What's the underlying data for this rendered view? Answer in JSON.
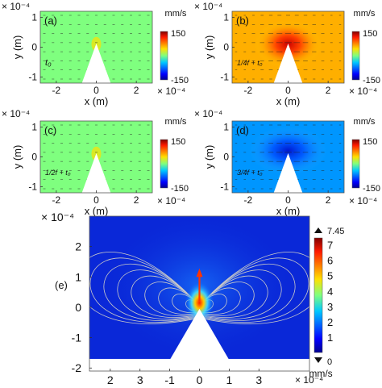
{
  "chart_data": [
    {
      "type": "heatmap",
      "panel_label": "(a)",
      "time_label": "t₀",
      "field": "uniform",
      "xlabel": "x (m)",
      "ylabel": "y (m)",
      "x_exponent": "× 10⁻⁴",
      "y_exponent": "× 10⁻⁴",
      "xlim": [
        -2.8,
        2.8
      ],
      "ylim": [
        -1.2,
        1.2
      ],
      "xticks": [
        "-2",
        "0",
        "2"
      ],
      "yticks": [
        "1",
        "0",
        "-1"
      ],
      "colorbar": {
        "unit": "mm/s",
        "ticks": [
          "150",
          "-150"
        ],
        "range": [
          -150,
          150
        ]
      },
      "background_value": 0
    },
    {
      "type": "heatmap",
      "panel_label": "(b)",
      "time_label": "1/4f + t₀",
      "field": "positive",
      "xlabel": "x (m)",
      "ylabel": "y (m)",
      "x_exponent": "× 10⁻⁴",
      "y_exponent": "× 10⁻⁴",
      "xlim": [
        -2.8,
        2.8
      ],
      "ylim": [
        -1.2,
        1.2
      ],
      "xticks": [
        "-2",
        "0",
        "2"
      ],
      "yticks": [
        "1",
        "0",
        "-1"
      ],
      "colorbar": {
        "unit": "mm/s",
        "ticks": [
          "150",
          "-150"
        ],
        "range": [
          -150,
          150
        ]
      },
      "background_value": 60
    },
    {
      "type": "heatmap",
      "panel_label": "(c)",
      "time_label": "1/2f + t₀",
      "field": "uniform",
      "xlabel": "x (m)",
      "ylabel": "y (m)",
      "x_exponent": "× 10⁻⁴",
      "y_exponent": "× 10⁻⁴",
      "xlim": [
        -2.8,
        2.8
      ],
      "ylim": [
        -1.2,
        1.2
      ],
      "xticks": [
        "-2",
        "0",
        "2"
      ],
      "yticks": [
        "1",
        "0",
        "-1"
      ],
      "colorbar": {
        "unit": "mm/s",
        "ticks": [
          "150",
          "-150"
        ],
        "range": [
          -150,
          150
        ]
      },
      "background_value": 0
    },
    {
      "type": "heatmap",
      "panel_label": "(d)",
      "time_label": "3/4f + t₀",
      "field": "negative",
      "xlabel": "x (m)",
      "ylabel": "y (m)",
      "x_exponent": "× 10⁻⁴",
      "y_exponent": "× 10⁻⁴",
      "xlim": [
        -2.8,
        2.8
      ],
      "ylim": [
        -1.2,
        1.2
      ],
      "xticks": [
        "-2",
        "0",
        "2"
      ],
      "yticks": [
        "1",
        "0",
        "-1"
      ],
      "colorbar": {
        "unit": "mm/s",
        "ticks": [
          "150",
          "-150"
        ],
        "range": [
          -150,
          150
        ]
      },
      "background_value": -60
    },
    {
      "type": "heatmap",
      "panel_label": "(e)",
      "field": "streaming",
      "x_exponent": "× 10⁻⁴",
      "y_exponent": "× 10⁻⁴",
      "xlim": [
        -3.7,
        3.7
      ],
      "ylim": [
        -2.1,
        3.0
      ],
      "xticks": [
        "2",
        "3",
        "-1",
        "0",
        "1",
        "3"
      ],
      "yticks": [
        "2",
        "1",
        "0",
        "-1",
        "-2"
      ],
      "colorbar": {
        "unit": "mm/s",
        "max_label": "7.45",
        "min_label": "0",
        "ticks": [
          "7",
          "6",
          "5",
          "4",
          "3",
          "2",
          "1"
        ],
        "range": [
          0,
          7.45
        ]
      },
      "peak_value": 7.45
    }
  ],
  "colors": {
    "jet_dark_blue": "#00008f",
    "jet_blue": "#0050ff",
    "jet_cyan": "#00e0ff",
    "jet_green": "#7fff7f",
    "jet_yellow": "#ffe000",
    "jet_red": "#ff1a00",
    "jet_dark_red": "#800000",
    "streamline": "#c8c8c8",
    "quiver": "#222222"
  }
}
